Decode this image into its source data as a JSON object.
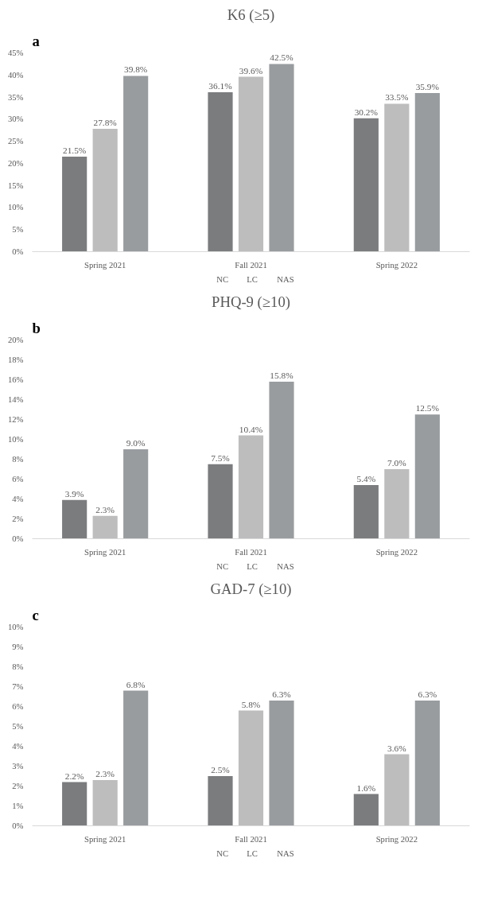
{
  "chart_data": [
    {
      "type": "bar",
      "annotations": [
        "a"
      ],
      "title": "K6 (≥5)",
      "categories": [
        "Spring 2021",
        "Fall 2021",
        "Spring 2022"
      ],
      "series": [
        {
          "name": "NC",
          "color": "#7b7c7e",
          "values": [
            21.5,
            36.1,
            30.2
          ],
          "value_labels": [
            "21.5%",
            "36.1%",
            "30.2%"
          ]
        },
        {
          "name": "LC",
          "color": "#bdbdbe",
          "values": [
            27.8,
            39.6,
            33.5
          ],
          "value_labels": [
            "27.8%",
            "39.6%",
            "33.5%"
          ]
        },
        {
          "name": "NAS",
          "color": "#999c9f",
          "values": [
            39.8,
            42.5,
            35.9
          ],
          "value_labels": [
            "39.8%",
            "42.5%",
            "35.9%"
          ]
        }
      ],
      "ylim": [
        0,
        45
      ],
      "yticks": [
        {
          "value": 0,
          "label": "0%"
        },
        {
          "value": 5,
          "label": "5%"
        },
        {
          "value": 10,
          "label": "10%"
        },
        {
          "value": 15,
          "label": "15%"
        },
        {
          "value": 20,
          "label": "20%"
        },
        {
          "value": 25,
          "label": "25%"
        },
        {
          "value": 30,
          "label": "30%"
        },
        {
          "value": 35,
          "label": "35%"
        },
        {
          "value": 40,
          "label": "40%"
        },
        {
          "value": 45,
          "label": "45%"
        }
      ],
      "grid": false,
      "legend": "bottom"
    },
    {
      "type": "bar",
      "annotations": [
        "b"
      ],
      "title": "PHQ-9 (≥10)",
      "categories": [
        "Spring 2021",
        "Fall 2021",
        "Spring 2022"
      ],
      "series": [
        {
          "name": "NC",
          "color": "#7b7c7e",
          "values": [
            3.9,
            7.5,
            5.4
          ],
          "value_labels": [
            "3.9%",
            "7.5%",
            "5.4%"
          ]
        },
        {
          "name": "LC",
          "color": "#bdbdbe",
          "values": [
            2.3,
            10.4,
            7.0
          ],
          "value_labels": [
            "2.3%",
            "10.4%",
            "7.0%"
          ]
        },
        {
          "name": "NAS",
          "color": "#999c9f",
          "values": [
            9.0,
            15.8,
            12.5
          ],
          "value_labels": [
            "9.0%",
            "15.8%",
            "12.5%"
          ]
        }
      ],
      "ylim": [
        0,
        20
      ],
      "yticks": [
        {
          "value": 0,
          "label": "0%"
        },
        {
          "value": 2,
          "label": "2%"
        },
        {
          "value": 4,
          "label": "4%"
        },
        {
          "value": 6,
          "label": "6%"
        },
        {
          "value": 8,
          "label": "8%"
        },
        {
          "value": 10,
          "label": "10%"
        },
        {
          "value": 12,
          "label": "12%"
        },
        {
          "value": 14,
          "label": "14%"
        },
        {
          "value": 16,
          "label": "16%"
        },
        {
          "value": 18,
          "label": "18%"
        },
        {
          "value": 20,
          "label": "20%"
        }
      ],
      "grid": false,
      "legend": "bottom"
    },
    {
      "type": "bar",
      "annotations": [
        "c"
      ],
      "title": "GAD-7 (≥10)",
      "categories": [
        "Spring 2021",
        "Fall 2021",
        "Spring 2022"
      ],
      "series": [
        {
          "name": "NC",
          "color": "#7b7c7e",
          "values": [
            2.2,
            2.5,
            1.6
          ],
          "value_labels": [
            "2.2%",
            "2.5%",
            "1.6%"
          ]
        },
        {
          "name": "LC",
          "color": "#bdbdbe",
          "values": [
            2.3,
            5.8,
            3.6
          ],
          "value_labels": [
            "2.3%",
            "5.8%",
            "3.6%"
          ]
        },
        {
          "name": "NAS",
          "color": "#999c9f",
          "values": [
            6.8,
            6.3,
            6.3
          ],
          "value_labels": [
            "6.8%",
            "6.3%",
            "6.3%"
          ]
        }
      ],
      "ylim": [
        0,
        10
      ],
      "yticks": [
        {
          "value": 0,
          "label": "0%"
        },
        {
          "value": 1,
          "label": "1%"
        },
        {
          "value": 2,
          "label": "2%"
        },
        {
          "value": 3,
          "label": "3%"
        },
        {
          "value": 4,
          "label": "4%"
        },
        {
          "value": 5,
          "label": "5%"
        },
        {
          "value": 6,
          "label": "6%"
        },
        {
          "value": 7,
          "label": "7%"
        },
        {
          "value": 8,
          "label": "8%"
        },
        {
          "value": 9,
          "label": "9%"
        },
        {
          "value": 10,
          "label": "10%"
        }
      ],
      "grid": false,
      "legend": "bottom"
    }
  ]
}
